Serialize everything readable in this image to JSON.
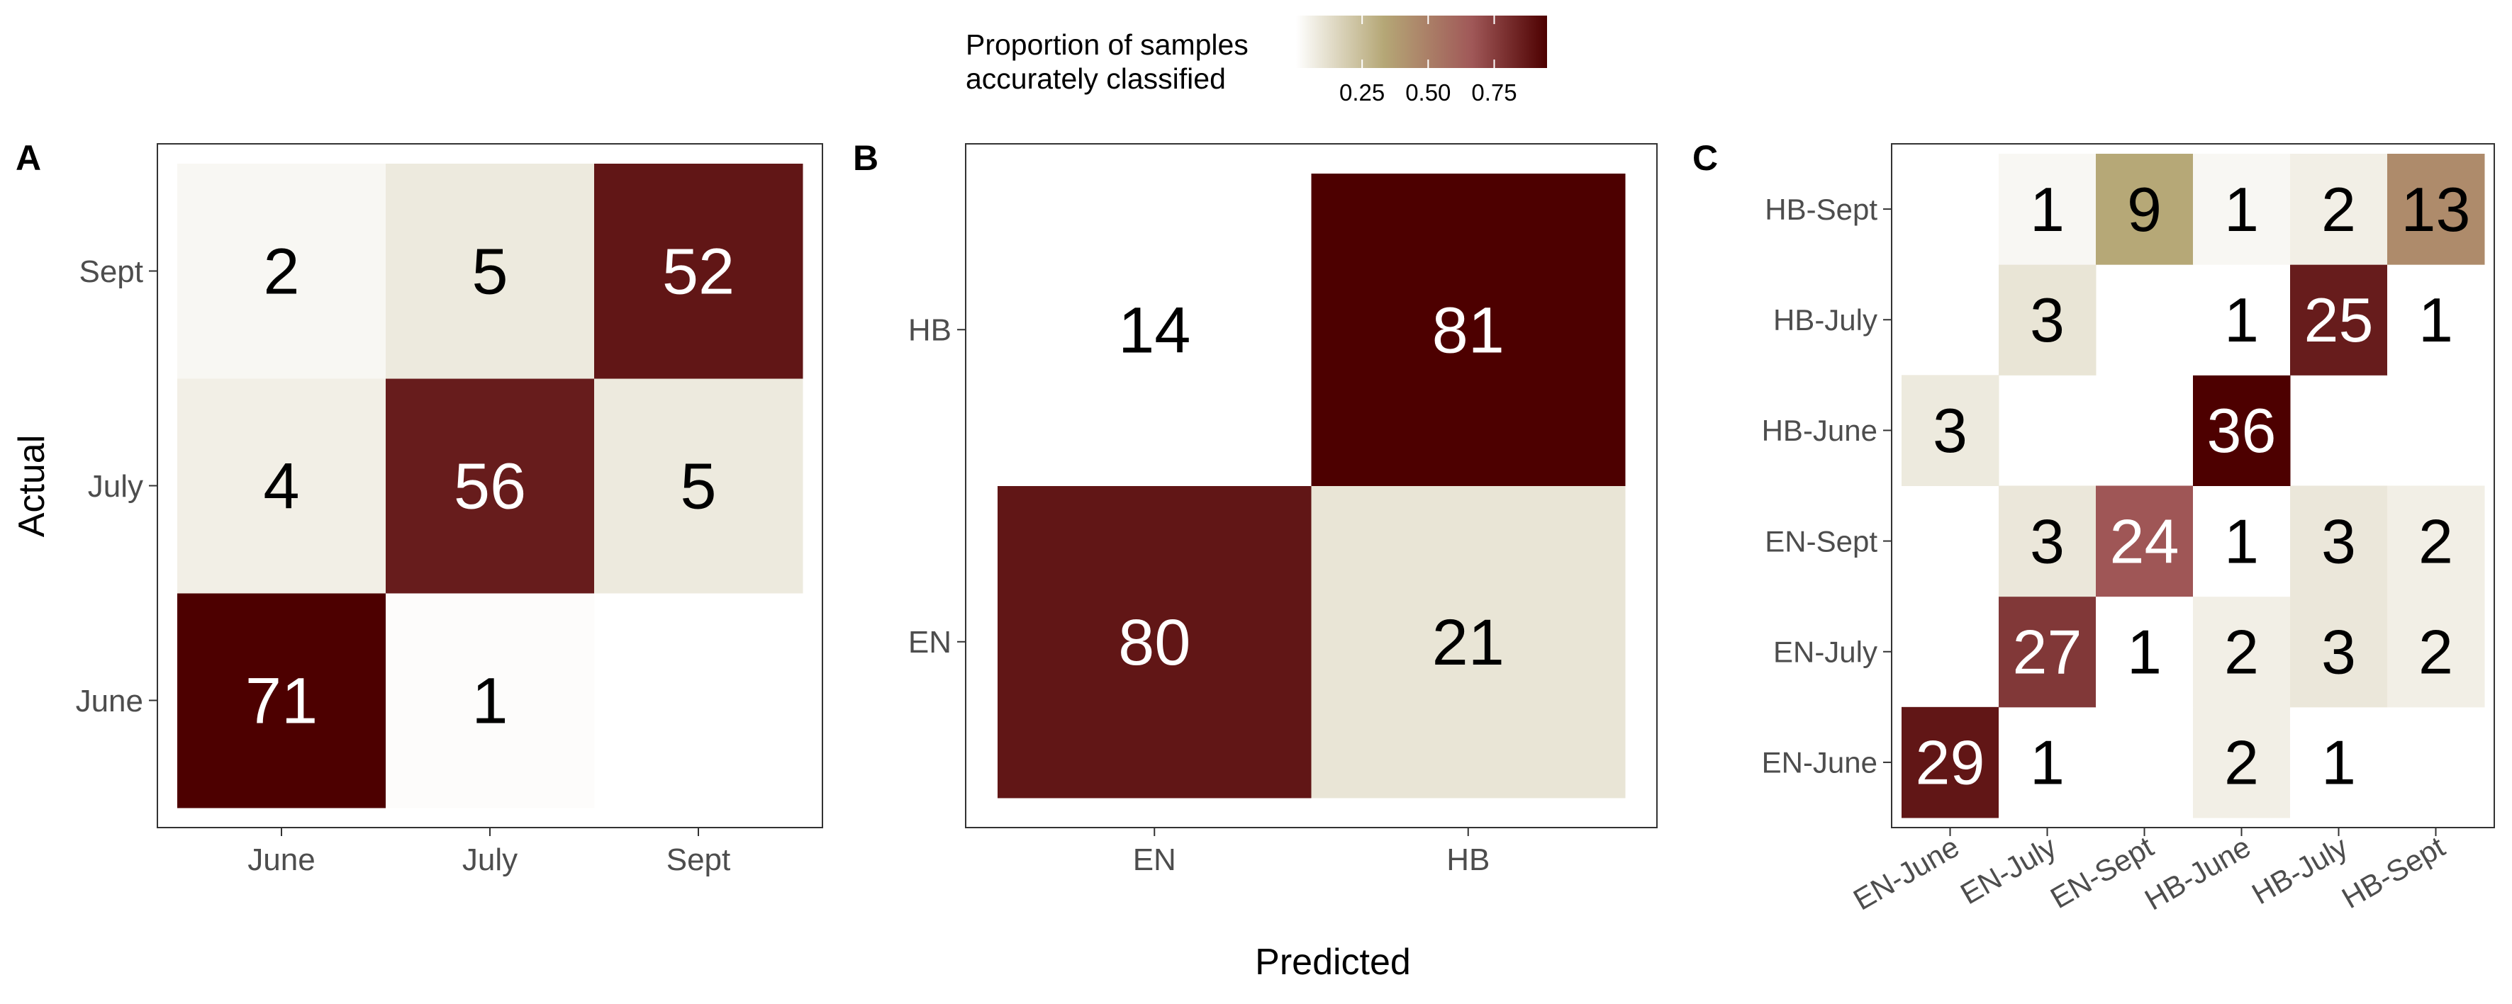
{
  "legend": {
    "title_line1": "Proportion of samples",
    "title_line2": "accurately classified",
    "ticks": [
      {
        "value": 0.25,
        "label": "0.25"
      },
      {
        "value": 0.5,
        "label": "0.50"
      },
      {
        "value": 0.75,
        "label": "0.75"
      }
    ],
    "range": [
      0,
      0.95
    ],
    "colors": [
      "#ffffff",
      "#b5a776",
      "#a05858",
      "#4d0000"
    ]
  },
  "axis_titles": {
    "y": "Actual",
    "x": "Predicted"
  },
  "chart_data": [
    {
      "type": "heatmap",
      "panel": "A",
      "x": [
        "June",
        "July",
        "Sept"
      ],
      "y": [
        "June",
        "July",
        "Sept"
      ],
      "cells": [
        {
          "x": "June",
          "y": "June",
          "count": 71,
          "proportion": 0.95
        },
        {
          "x": "July",
          "y": "June",
          "count": 1,
          "proportion": 0.01
        },
        {
          "x": "June",
          "y": "July",
          "count": 4,
          "proportion": 0.06
        },
        {
          "x": "July",
          "y": "July",
          "count": 56,
          "proportion": 0.86
        },
        {
          "x": "Sept",
          "y": "July",
          "count": 5,
          "proportion": 0.08
        },
        {
          "x": "June",
          "y": "Sept",
          "count": 2,
          "proportion": 0.03
        },
        {
          "x": "July",
          "y": "Sept",
          "count": 5,
          "proportion": 0.08
        },
        {
          "x": "Sept",
          "y": "Sept",
          "count": 52,
          "proportion": 0.88
        }
      ]
    },
    {
      "type": "heatmap",
      "panel": "B",
      "x": [
        "EN",
        "HB"
      ],
      "y": [
        "EN",
        "HB"
      ],
      "cells": [
        {
          "x": "EN",
          "y": "EN",
          "count": 80,
          "proportion": 0.88
        },
        {
          "x": "HB",
          "y": "EN",
          "count": 21,
          "proportion": 0.1
        },
        {
          "x": "EN",
          "y": "HB",
          "count": 14,
          "proportion": 0.0
        },
        {
          "x": "HB",
          "y": "HB",
          "count": 81,
          "proportion": 0.95
        }
      ]
    },
    {
      "type": "heatmap",
      "panel": "C",
      "x": [
        "EN-June",
        "EN-July",
        "EN-Sept",
        "HB-June",
        "HB-July",
        "HB-Sept"
      ],
      "y": [
        "EN-June",
        "EN-July",
        "EN-Sept",
        "HB-June",
        "HB-July",
        "HB-Sept"
      ],
      "cells": [
        {
          "x": "EN-June",
          "y": "EN-June",
          "count": 29,
          "proportion": 0.88
        },
        {
          "x": "EN-July",
          "y": "EN-June",
          "count": 1,
          "proportion": 0.0
        },
        {
          "x": "HB-June",
          "y": "EN-June",
          "count": 2,
          "proportion": 0.06
        },
        {
          "x": "HB-July",
          "y": "EN-June",
          "count": 1,
          "proportion": 0.0
        },
        {
          "x": "EN-July",
          "y": "EN-July",
          "count": 27,
          "proportion": 0.77
        },
        {
          "x": "EN-Sept",
          "y": "EN-July",
          "count": 1,
          "proportion": 0.0
        },
        {
          "x": "HB-June",
          "y": "EN-July",
          "count": 2,
          "proportion": 0.06
        },
        {
          "x": "HB-July",
          "y": "EN-July",
          "count": 3,
          "proportion": 0.09
        },
        {
          "x": "HB-Sept",
          "y": "EN-July",
          "count": 2,
          "proportion": 0.06
        },
        {
          "x": "EN-July",
          "y": "EN-Sept",
          "count": 3,
          "proportion": 0.09
        },
        {
          "x": "EN-Sept",
          "y": "EN-Sept",
          "count": 24,
          "proportion": 0.67
        },
        {
          "x": "HB-June",
          "y": "EN-Sept",
          "count": 1,
          "proportion": 0.0
        },
        {
          "x": "HB-July",
          "y": "EN-Sept",
          "count": 3,
          "proportion": 0.09
        },
        {
          "x": "HB-Sept",
          "y": "EN-Sept",
          "count": 2,
          "proportion": 0.06
        },
        {
          "x": "EN-June",
          "y": "HB-June",
          "count": 3,
          "proportion": 0.08
        },
        {
          "x": "HB-June",
          "y": "HB-June",
          "count": 36,
          "proportion": 0.95
        },
        {
          "x": "EN-July",
          "y": "HB-July",
          "count": 3,
          "proportion": 0.1
        },
        {
          "x": "HB-June",
          "y": "HB-July",
          "count": 1,
          "proportion": 0.0
        },
        {
          "x": "HB-July",
          "y": "HB-July",
          "count": 25,
          "proportion": 0.86
        },
        {
          "x": "HB-Sept",
          "y": "HB-July",
          "count": 1,
          "proportion": 0.0
        },
        {
          "x": "EN-July",
          "y": "HB-Sept",
          "count": 1,
          "proportion": 0.03
        },
        {
          "x": "EN-Sept",
          "y": "HB-Sept",
          "count": 9,
          "proportion": 0.33
        },
        {
          "x": "HB-June",
          "y": "HB-Sept",
          "count": 1,
          "proportion": 0.03
        },
        {
          "x": "HB-July",
          "y": "HB-Sept",
          "count": 2,
          "proportion": 0.06
        },
        {
          "x": "HB-Sept",
          "y": "HB-Sept",
          "count": 13,
          "proportion": 0.45
        }
      ]
    }
  ]
}
